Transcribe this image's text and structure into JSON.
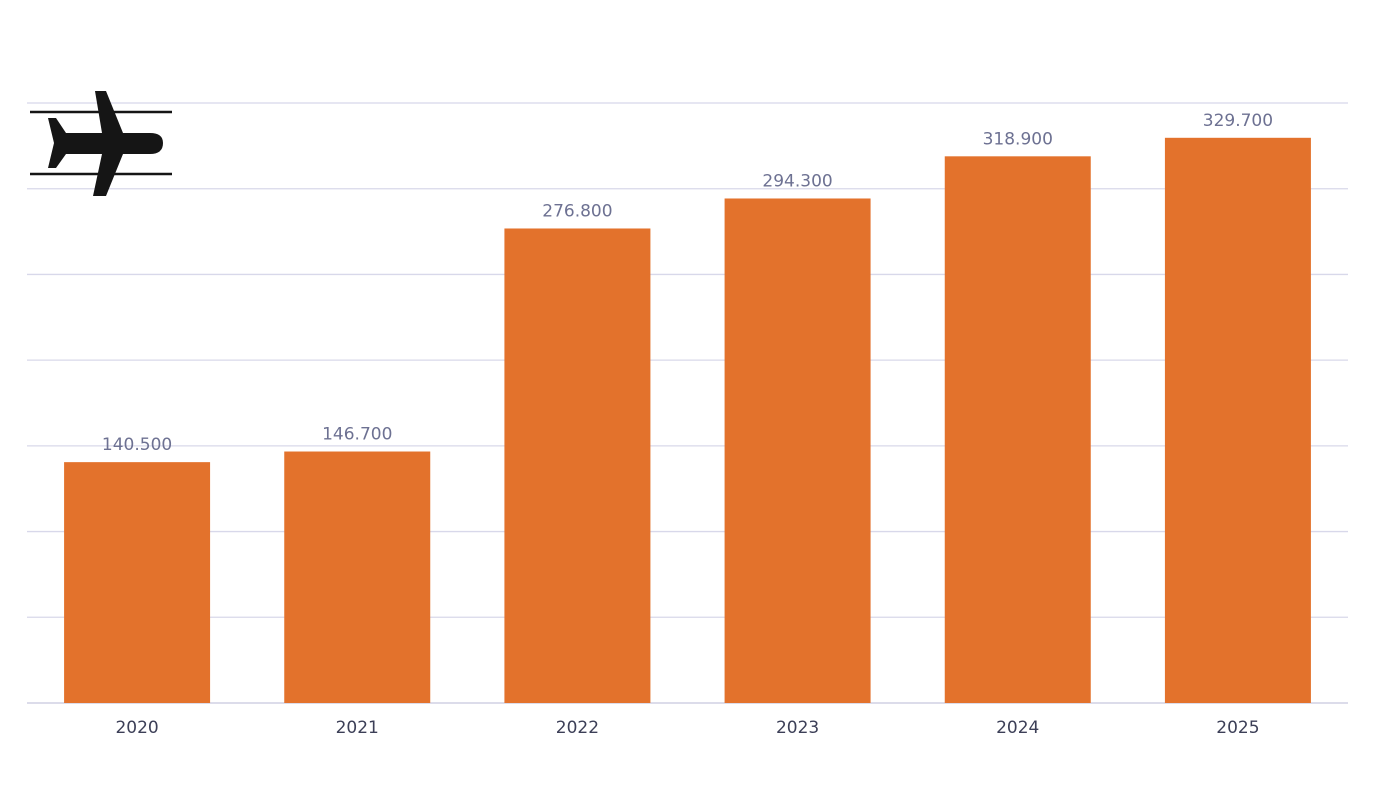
{
  "chart_data": {
    "type": "bar",
    "categories": [
      "2020",
      "2021",
      "2022",
      "2023",
      "2024",
      "2025"
    ],
    "values": [
      140.5,
      146.7,
      276.8,
      294.3,
      318.9,
      329.7
    ],
    "value_labels": [
      "140.500",
      "146.700",
      "276.800",
      "294.300",
      "318.900",
      "329.700"
    ],
    "title": "",
    "xlabel": "",
    "ylabel": "",
    "ylim": [
      0,
      350
    ],
    "gridlines": [
      0,
      50,
      100,
      150,
      200,
      250,
      300,
      350
    ],
    "grid": true,
    "y_tick_labels_shown": false,
    "legend": "none",
    "bar_color": "#e3722c",
    "grid_color": "#d8d8ea",
    "value_label_color": "#6d7192",
    "tick_label_color": "#3c3f57",
    "icon": "airplane-icon"
  }
}
